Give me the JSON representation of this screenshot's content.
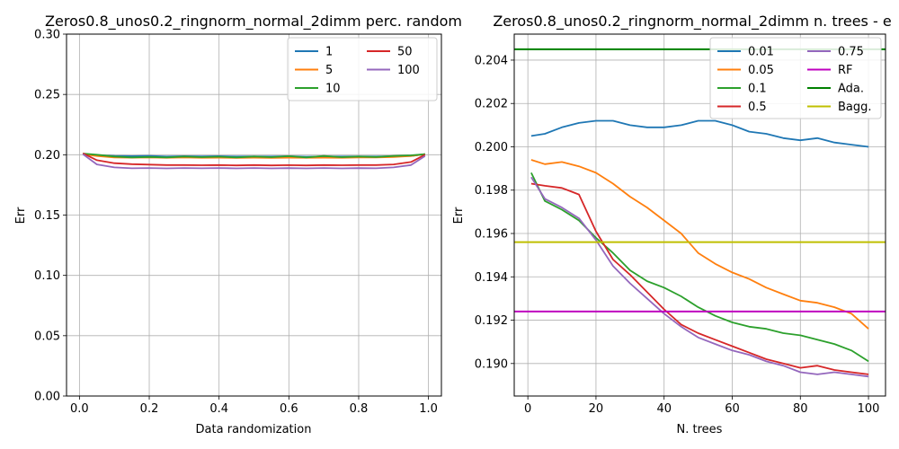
{
  "colors": {
    "c1": "#1f77b4",
    "c2": "#ff7f0e",
    "c3": "#2ca02c",
    "c4": "#d62728",
    "c5": "#9467bd",
    "magenta": "#bf00bf",
    "green": "#008000",
    "olive": "#bfbf00",
    "grid": "#b0b0b0"
  },
  "chart_data": [
    {
      "type": "line",
      "title": "Zeros0.8_unos0.2_ringnorm_normal_2dimm perc. random",
      "xlabel": "Data randomization",
      "ylabel": "Err",
      "xlim": [
        -0.037,
        1.037
      ],
      "ylim": [
        0.0,
        0.3
      ],
      "xticks": [
        0.0,
        0.2,
        0.4,
        0.6,
        0.8,
        1.0
      ],
      "xtick_labels": [
        "0.0",
        "0.2",
        "0.4",
        "0.6",
        "0.8",
        "1.0"
      ],
      "yticks": [
        0.0,
        0.05,
        0.1,
        0.15,
        0.2,
        0.25,
        0.3
      ],
      "ytick_labels": [
        "0.00",
        "0.05",
        "0.10",
        "0.15",
        "0.20",
        "0.25",
        "0.30"
      ],
      "grid": true,
      "legend": "top-right, 2 columns",
      "x": [
        0.01,
        0.05,
        0.1,
        0.15,
        0.2,
        0.25,
        0.3,
        0.35,
        0.4,
        0.45,
        0.5,
        0.55,
        0.6,
        0.65,
        0.7,
        0.75,
        0.8,
        0.85,
        0.9,
        0.95,
        0.99
      ],
      "series": [
        {
          "name": "1",
          "color": "#1f77b4",
          "values": [
            0.2005,
            0.1995,
            0.199,
            0.1988,
            0.199,
            0.1985,
            0.1988,
            0.1986,
            0.1988,
            0.1985,
            0.1987,
            0.1985,
            0.1988,
            0.1984,
            0.1986,
            0.1985,
            0.1987,
            0.1985,
            0.1988,
            0.199,
            0.2005
          ]
        },
        {
          "name": "5",
          "color": "#ff7f0e",
          "values": [
            0.2005,
            0.199,
            0.1978,
            0.1976,
            0.1978,
            0.1975,
            0.1977,
            0.1975,
            0.1976,
            0.1974,
            0.1976,
            0.1974,
            0.1976,
            0.1975,
            0.1976,
            0.1975,
            0.1977,
            0.1978,
            0.1982,
            0.199,
            0.2005
          ]
        },
        {
          "name": "10",
          "color": "#2ca02c",
          "values": [
            0.201,
            0.2,
            0.1985,
            0.1978,
            0.1982,
            0.1978,
            0.1985,
            0.198,
            0.1984,
            0.1978,
            0.1985,
            0.198,
            0.1988,
            0.1978,
            0.199,
            0.198,
            0.1985,
            0.1982,
            0.199,
            0.1995,
            0.2005
          ]
        },
        {
          "name": "50",
          "color": "#d62728",
          "values": [
            0.2012,
            0.1955,
            0.193,
            0.1922,
            0.1918,
            0.1915,
            0.1915,
            0.1913,
            0.1915,
            0.1912,
            0.1915,
            0.1912,
            0.1914,
            0.1912,
            0.1915,
            0.1913,
            0.1915,
            0.1915,
            0.192,
            0.194,
            0.2
          ]
        },
        {
          "name": "100",
          "color": "#9467bd",
          "values": [
            0.2005,
            0.192,
            0.1895,
            0.1888,
            0.189,
            0.1887,
            0.189,
            0.1888,
            0.189,
            0.1887,
            0.189,
            0.1887,
            0.1889,
            0.1887,
            0.189,
            0.1887,
            0.1889,
            0.1888,
            0.1895,
            0.1915,
            0.199
          ]
        }
      ]
    },
    {
      "type": "line",
      "title": "Zeros0.8_unos0.2_ringnorm_normal_2dimm n. trees - e",
      "xlabel": "N. trees",
      "ylabel": "Err",
      "xlim": [
        -4,
        105
      ],
      "ylim": [
        0.1885,
        0.2052
      ],
      "xticks": [
        0,
        20,
        40,
        60,
        80,
        100
      ],
      "xtick_labels": [
        "0",
        "20",
        "40",
        "60",
        "80",
        "100"
      ],
      "yticks": [
        0.19,
        0.192,
        0.194,
        0.196,
        0.198,
        0.2,
        0.202,
        0.204
      ],
      "ytick_labels": [
        "0.190",
        "0.192",
        "0.194",
        "0.196",
        "0.198",
        "0.200",
        "0.202",
        "0.204"
      ],
      "grid": true,
      "legend": "top-right, 2 columns",
      "x": [
        1,
        5,
        10,
        15,
        20,
        25,
        30,
        35,
        40,
        45,
        50,
        55,
        60,
        65,
        70,
        75,
        80,
        85,
        90,
        95,
        100
      ],
      "series": [
        {
          "name": "0.01",
          "color": "#1f77b4",
          "values": [
            0.2005,
            0.2006,
            0.2009,
            0.2011,
            0.2012,
            0.2012,
            0.201,
            0.2009,
            0.2009,
            0.201,
            0.2012,
            0.2012,
            0.201,
            0.2007,
            0.2006,
            0.2004,
            0.2003,
            0.2004,
            0.2002,
            0.2001,
            0.2
          ]
        },
        {
          "name": "0.05",
          "color": "#ff7f0e",
          "values": [
            0.1994,
            0.1992,
            0.1993,
            0.1991,
            0.1988,
            0.1983,
            0.1977,
            0.1972,
            0.1966,
            0.196,
            0.1951,
            0.1946,
            0.1942,
            0.1939,
            0.1935,
            0.1932,
            0.1929,
            0.1928,
            0.1926,
            0.1923,
            0.1916
          ]
        },
        {
          "name": "0.1",
          "color": "#2ca02c",
          "values": [
            0.1988,
            0.1975,
            0.1971,
            0.1966,
            0.1958,
            0.1951,
            0.1943,
            0.1938,
            0.1935,
            0.1931,
            0.1926,
            0.1922,
            0.1919,
            0.1917,
            0.1916,
            0.1914,
            0.1913,
            0.1911,
            0.1909,
            0.1906,
            0.1901
          ]
        },
        {
          "name": "0.5",
          "color": "#d62728",
          "values": [
            0.1983,
            0.1982,
            0.1981,
            0.1978,
            0.1961,
            0.1948,
            0.1941,
            0.1933,
            0.1925,
            0.1918,
            0.1914,
            0.1911,
            0.1908,
            0.1905,
            0.1902,
            0.19,
            0.1898,
            0.1899,
            0.1897,
            0.1896,
            0.1895
          ]
        },
        {
          "name": "0.75",
          "color": "#9467bd",
          "values": [
            0.1986,
            0.1976,
            0.1972,
            0.1967,
            0.1957,
            0.1945,
            0.1937,
            0.193,
            0.1923,
            0.1917,
            0.1912,
            0.1909,
            0.1906,
            0.1904,
            0.1901,
            0.1899,
            0.1896,
            0.1895,
            0.1896,
            0.1895,
            0.1894
          ]
        },
        {
          "name": "RF",
          "color": "#bf00bf",
          "hline": 0.1924
        },
        {
          "name": "Ada.",
          "color": "#008000",
          "hline": 0.2045
        },
        {
          "name": "Bagg.",
          "color": "#bfbf00",
          "hline": 0.1956
        }
      ]
    }
  ]
}
